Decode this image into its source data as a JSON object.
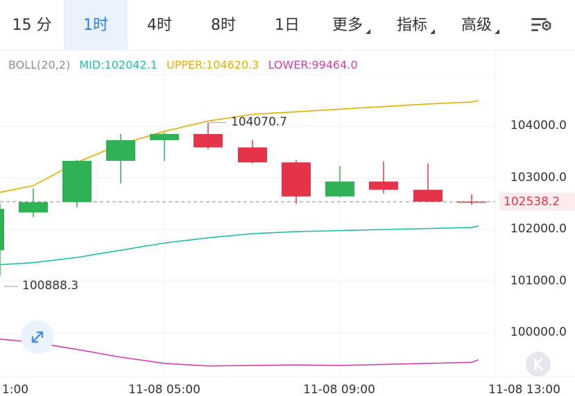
{
  "tabs": [
    {
      "label": "15 分",
      "active": false,
      "dropdown": false
    },
    {
      "label": "1时",
      "active": true,
      "dropdown": false
    },
    {
      "label": "4时",
      "active": false,
      "dropdown": false
    },
    {
      "label": "8时",
      "active": false,
      "dropdown": false
    },
    {
      "label": "1日",
      "active": false,
      "dropdown": false
    },
    {
      "label": "更多",
      "active": false,
      "dropdown": true
    },
    {
      "label": "指标",
      "active": false,
      "dropdown": true
    },
    {
      "label": "高级",
      "active": false,
      "dropdown": true
    }
  ],
  "settings_icon": "chart-settings-icon",
  "indicator": {
    "name": "BOLL(20,2)",
    "mid": "MID:102042.1",
    "upper": "UPPER:104620.3",
    "lower": "LOWER:99464.0"
  },
  "colors": {
    "up": "#2fb155",
    "down": "#e5344a",
    "mid": "#1fbfa4",
    "upper": "#e0b000",
    "lower": "#d63fab",
    "active_tab": "#2f7ce8"
  },
  "chart_data": {
    "type": "candlestick",
    "y_ticks": [
      "104000.0",
      "103000.0",
      "102000.0",
      "101000.0",
      "100000.0"
    ],
    "y_tick_values": [
      104000,
      103000,
      102000,
      101000,
      100000
    ],
    "x_ticks": [
      "1:00",
      "11-08 05:00",
      "11-08 09:00",
      "11-08 13:00"
    ],
    "current_price": "102538.2",
    "current_price_value": 102538.2,
    "high_annotation": "104070.7",
    "low_annotation": "100888.3",
    "candles": [
      {
        "o": 101600,
        "c": 102400,
        "h": 102500,
        "l": 101100
      },
      {
        "o": 102330,
        "c": 102530,
        "h": 102800,
        "l": 102240
      },
      {
        "o": 102530,
        "c": 103330,
        "h": 103350,
        "l": 102430
      },
      {
        "o": 103330,
        "c": 103730,
        "h": 103850,
        "l": 102890
      },
      {
        "o": 103730,
        "c": 103850,
        "h": 103880,
        "l": 103330
      },
      {
        "o": 103850,
        "c": 103590,
        "h": 104070,
        "l": 103550
      },
      {
        "o": 103590,
        "c": 103300,
        "h": 103730,
        "l": 103280
      },
      {
        "o": 103300,
        "c": 102640,
        "h": 103340,
        "l": 102500
      },
      {
        "o": 102640,
        "c": 102930,
        "h": 103230,
        "l": 102620
      },
      {
        "o": 102930,
        "c": 102770,
        "h": 103320,
        "l": 102700
      },
      {
        "o": 102770,
        "c": 102540,
        "h": 103280,
        "l": 102530
      },
      {
        "o": 102540,
        "c": 102538,
        "h": 102680,
        "l": 102480
      }
    ],
    "upper_band": [
      102720,
      102850,
      103300,
      103650,
      103900,
      104100,
      104230,
      104280,
      104330,
      104380,
      104430,
      104470,
      104500
    ],
    "mid_band": [
      101320,
      101360,
      101460,
      101600,
      101740,
      101840,
      101920,
      101960,
      101980,
      102000,
      102020,
      102040,
      102070
    ],
    "lower_band": [
      99880,
      99820,
      99680,
      99530,
      99410,
      99360,
      99370,
      99380,
      99370,
      99390,
      99410,
      99430,
      99480
    ]
  }
}
